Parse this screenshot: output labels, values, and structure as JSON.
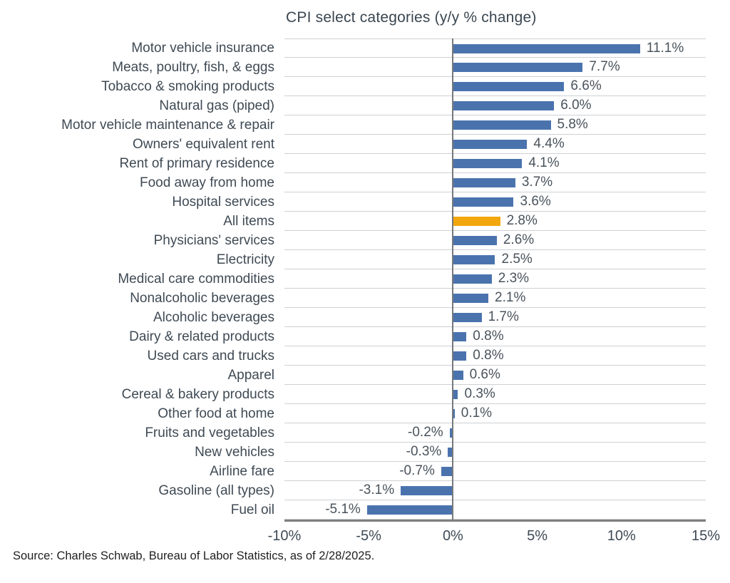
{
  "source": "Source: Charles Schwab, Bureau of Labor Statistics, as of 2/28/2025.",
  "colors": {
    "bar_blue": "#4a73ae",
    "highlight_orange": "#f2a70e",
    "gridline": "#cdd0d3",
    "zero_line": "#76797c",
    "axis_line": "#7f7f7f",
    "chart_text": "#3f4a54",
    "source_text": "#1f1f1f"
  },
  "chart_data": {
    "type": "bar",
    "orientation": "horizontal",
    "title": "CPI select categories (y/y % change)",
    "xlabel": "",
    "ylabel": "",
    "xlim": [
      -10,
      15
    ],
    "x_ticks": [
      "-10%",
      "-5%",
      "0%",
      "5%",
      "10%",
      "15%"
    ],
    "x_tick_values": [
      -10,
      -5,
      0,
      5,
      10,
      15
    ],
    "grid": "horizontal row separators only",
    "legend": "none",
    "highlight_category": "All items",
    "categories": [
      "Motor vehicle insurance",
      "Meats, poultry, fish, & eggs",
      "Tobacco & smoking products",
      "Natural gas (piped)",
      "Motor vehicle maintenance & repair",
      "Owners' equivalent rent",
      "Rent of primary residence",
      "Food away from home",
      "Hospital services",
      "All items",
      "Physicians' services",
      "Electricity",
      "Medical care commodities",
      "Nonalcoholic beverages",
      "Alcoholic beverages",
      "Dairy & related products",
      "Used cars and trucks",
      "Apparel",
      "Cereal & bakery products",
      "Other food at home",
      "Fruits and vegetables",
      "New vehicles",
      "Airline fare",
      "Gasoline (all types)",
      "Fuel oil"
    ],
    "values": [
      11.1,
      7.7,
      6.6,
      6.0,
      5.8,
      4.4,
      4.1,
      3.7,
      3.6,
      2.8,
      2.6,
      2.5,
      2.3,
      2.1,
      1.7,
      0.8,
      0.8,
      0.6,
      0.3,
      0.1,
      -0.2,
      -0.3,
      -0.7,
      -3.1,
      -5.1
    ],
    "value_labels": [
      "11.1%",
      "7.7%",
      "6.6%",
      "6.0%",
      "5.8%",
      "4.4%",
      "4.1%",
      "3.7%",
      "3.6%",
      "2.8%",
      "2.6%",
      "2.5%",
      "2.3%",
      "2.1%",
      "1.7%",
      "0.8%",
      "0.8%",
      "0.6%",
      "0.3%",
      "0.1%",
      "-0.2%",
      "-0.3%",
      "-0.7%",
      "-3.1%",
      "-5.1%"
    ]
  }
}
